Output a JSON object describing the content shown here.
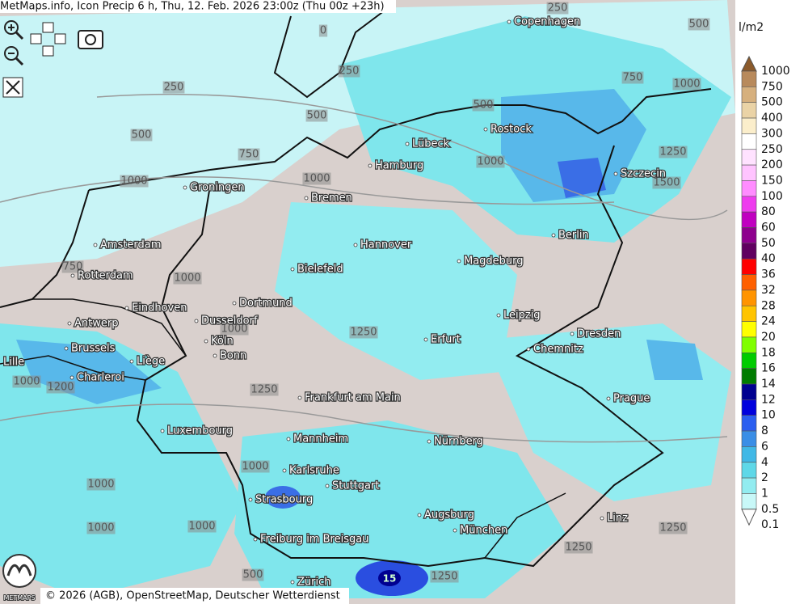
{
  "header": {
    "title": "MetMaps.info, Icon Precip 6 h, Thu, 12. Feb. 2026 23:00z (Thu 00z +23h)"
  },
  "cities": [
    "Copenhagen",
    "Rostock",
    "Lübeck",
    "Hamburg",
    "Szczecin",
    "Groningen",
    "Bremen",
    "Berlin",
    "Amsterdam",
    "Hannover",
    "Magdeburg",
    "Bielefeld",
    "Rotterdam",
    "Eindhoven",
    "Dortmund",
    "Leipzig",
    "Antwerp",
    "Dusseldorf",
    "Dresden",
    "Erfurt",
    "Köln",
    "Brussels",
    "Chemnitz",
    "Bonn",
    "Liège",
    "Lille",
    "Charleroi",
    "Frankfurt am Main",
    "Prague",
    "Luxembourg",
    "Mannheim",
    "Nürnberg",
    "Karlsruhe",
    "Stuttgart",
    "Strasbourg",
    "Augsburg",
    "Linz",
    "München",
    "Freiburg im Breisgau",
    "Zürich"
  ],
  "isolines": [
    "250",
    "500",
    "0",
    "250",
    "250",
    "500",
    "500",
    "750",
    "1000",
    "500",
    "750",
    "1000",
    "1250",
    "1000",
    "1000",
    "1500",
    "750",
    "1000",
    "1000",
    "1250",
    "1000",
    "1200",
    "1250",
    "1000",
    "1000",
    "1000",
    "1000",
    "1250",
    "1250",
    "1250",
    "500"
  ],
  "peak_label": "15",
  "legend": {
    "unit": "l/m2",
    "items": [
      {
        "label": "1000",
        "color": "#8b5a2b"
      },
      {
        "label": "750",
        "color": "#b88a5c"
      },
      {
        "label": "500",
        "color": "#d6b07e"
      },
      {
        "label": "400",
        "color": "#ead3a6"
      },
      {
        "label": "300",
        "color": "#fbeecb"
      },
      {
        "label": "250",
        "color": "#ffffff"
      },
      {
        "label": "200",
        "color": "#ffe2ff"
      },
      {
        "label": "150",
        "color": "#ffc4ff"
      },
      {
        "label": "100",
        "color": "#ff8cff"
      },
      {
        "label": "80",
        "color": "#ee3cee"
      },
      {
        "label": "60",
        "color": "#c000c0"
      },
      {
        "label": "50",
        "color": "#8e008e"
      },
      {
        "label": "40",
        "color": "#600060"
      },
      {
        "label": "36",
        "color": "#ff0000"
      },
      {
        "label": "32",
        "color": "#ff6000"
      },
      {
        "label": "28",
        "color": "#ff9400"
      },
      {
        "label": "24",
        "color": "#ffc400"
      },
      {
        "label": "20",
        "color": "#ffff00"
      },
      {
        "label": "18",
        "color": "#80ff00"
      },
      {
        "label": "16",
        "color": "#00cc00"
      },
      {
        "label": "14",
        "color": "#007c00"
      },
      {
        "label": "12",
        "color": "#000090"
      },
      {
        "label": "10",
        "color": "#0000dd"
      },
      {
        "label": "8",
        "color": "#2a5ef0"
      },
      {
        "label": "6",
        "color": "#3a8ee6"
      },
      {
        "label": "4",
        "color": "#40b8e6"
      },
      {
        "label": "2",
        "color": "#5ed8e8"
      },
      {
        "label": "1",
        "color": "#92ecf0"
      },
      {
        "label": "0.5",
        "color": "#c8f8f8"
      },
      {
        "label": "0.1",
        "color": "#ffffff"
      }
    ]
  },
  "logo": {
    "text": "METMAPS"
  },
  "footer": {
    "copyright": "© 2026 (AGB), OpenStreetMap, Deutscher Wetterdienst"
  }
}
